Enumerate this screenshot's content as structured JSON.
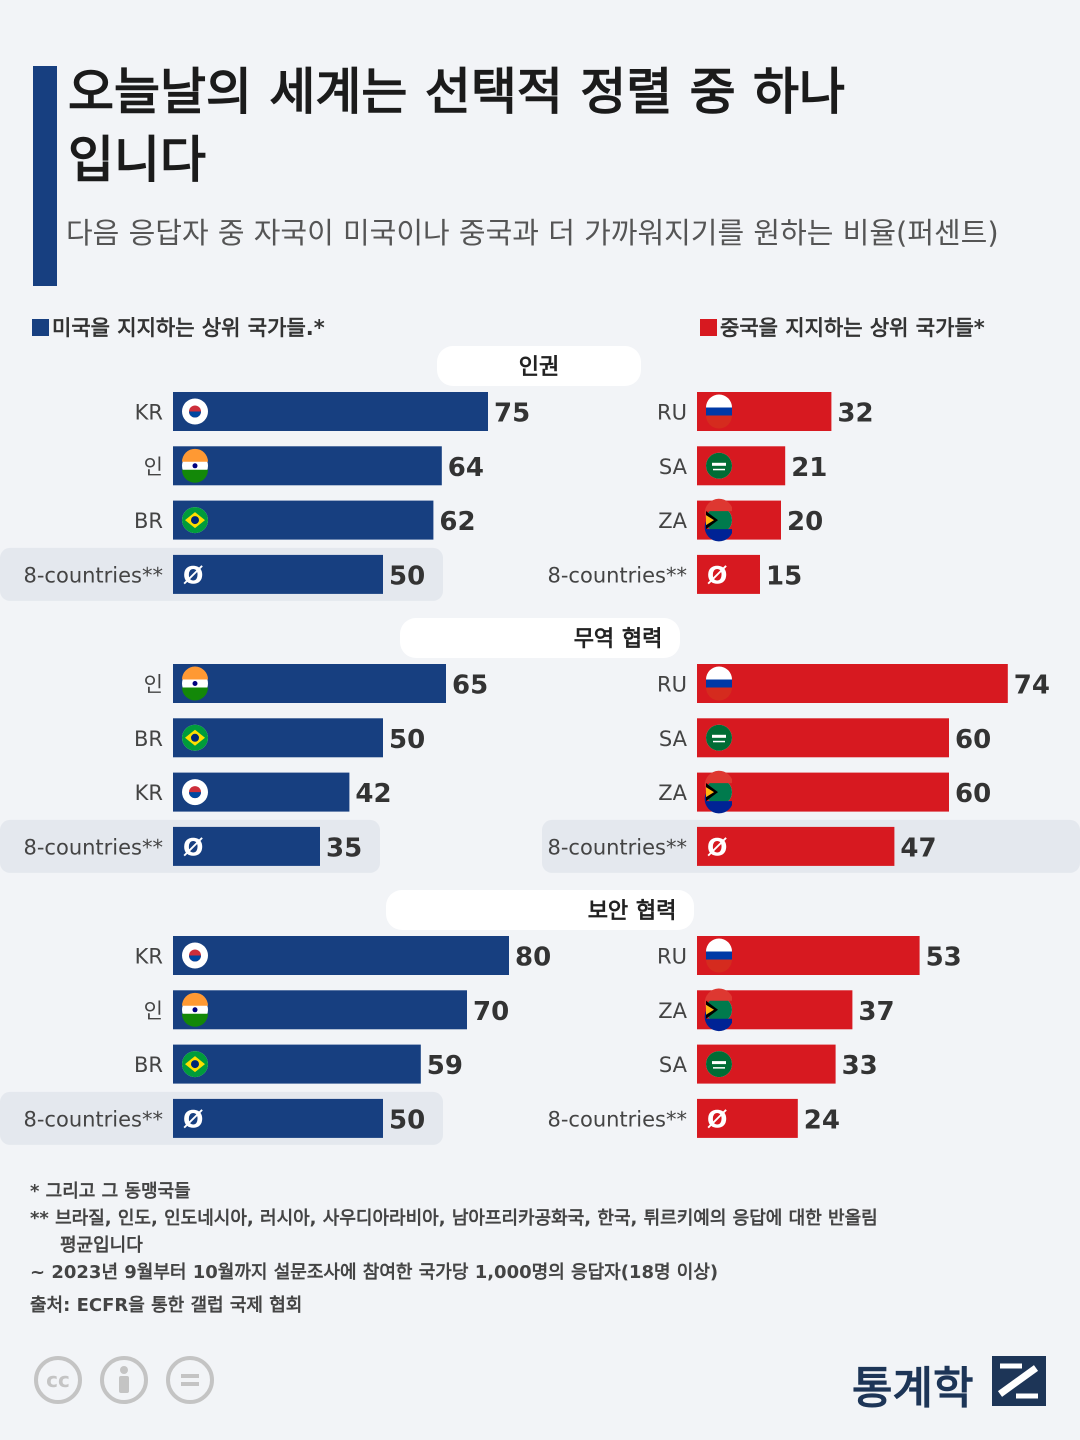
{
  "title": "오늘날의 세계는 선택적 정렬 중 하나입니다",
  "subtitle": "다음 응답자 중 자국이 미국이나 중국과 더 가까워지기를 원하는 비율(퍼센트)",
  "legend": {
    "us_label": "미국을 지지하는 상위 국가들.*",
    "cn_label": "중국을 지지하는 상위 국가들*"
  },
  "colors": {
    "us": "#173f80",
    "cn": "#d71920",
    "title_bar": "#173f80"
  },
  "avg_symbol": "Ø",
  "chart_data": {
    "type": "bar",
    "orientation": "horizontal",
    "xlim": [
      0,
      100
    ],
    "panels": [
      {
        "title": "인권",
        "us": {
          "categories": [
            "KR",
            "인",
            "BR",
            "8-countries**"
          ],
          "values": [
            75,
            64,
            62,
            50
          ]
        },
        "cn": {
          "categories": [
            "RU",
            "SA",
            "ZA",
            "8-countries**"
          ],
          "values": [
            32,
            21,
            20,
            15
          ]
        }
      },
      {
        "title": "무역 협력",
        "us": {
          "categories": [
            "인",
            "BR",
            "KR",
            "8-countries**"
          ],
          "values": [
            65,
            50,
            42,
            35
          ]
        },
        "cn": {
          "categories": [
            "RU",
            "SA",
            "ZA",
            "8-countries**"
          ],
          "values": [
            74,
            60,
            60,
            47
          ]
        }
      },
      {
        "title": "보안 협력",
        "us": {
          "categories": [
            "KR",
            "인",
            "BR",
            "8-countries**"
          ],
          "values": [
            80,
            70,
            59,
            50
          ]
        },
        "cn": {
          "categories": [
            "RU",
            "ZA",
            "SA",
            "8-countries**"
          ],
          "values": [
            53,
            37,
            33,
            24
          ]
        }
      }
    ]
  },
  "notes": {
    "note1": "* 그리고 그 동맹국들",
    "note2": "** 브라질, 인도, 인도네시아, 러시아, 사우디아라비아, 남아프리카공화국, 한국, 튀르키예의 응답에 대한 반올림",
    "note2b": "평균입니다",
    "note3": "~ 2023년 9월부터 10월까지 설문조사에 참여한 국가당 1,000명의 응답자(18명 이상)",
    "source": "출처: ECFR을 통한 갤럽 국제 협회"
  },
  "footer": {
    "cc_label": "cc",
    "brand": "통계학"
  }
}
